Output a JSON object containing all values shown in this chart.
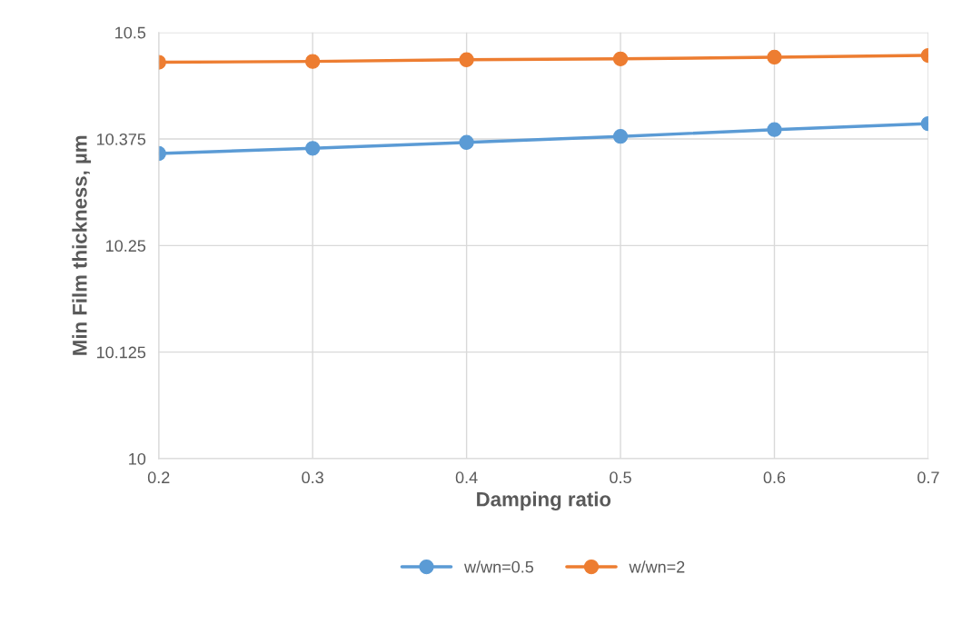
{
  "chart_data": {
    "type": "line",
    "xlabel": "Damping ratio",
    "ylabel": "Min Film thickness, µm",
    "x": [
      0.2,
      0.3,
      0.4,
      0.5,
      0.6,
      0.7
    ],
    "series": [
      {
        "name": "w/wn=0.5",
        "color": "#5b9bd5",
        "values": [
          10.358,
          10.364,
          10.371,
          10.378,
          10.386,
          10.393
        ]
      },
      {
        "name": "w/wn=2",
        "color": "#ed7d31",
        "values": [
          10.465,
          10.466,
          10.468,
          10.469,
          10.471,
          10.473
        ]
      }
    ],
    "xlim": [
      0.2,
      0.7
    ],
    "xticks": [
      0.2,
      0.3,
      0.4,
      0.5,
      0.6,
      0.7
    ],
    "ylim": [
      10,
      10.5
    ],
    "yticks": [
      10,
      10.125,
      10.25,
      10.375,
      10.5
    ],
    "grid": true,
    "legend": "bottom",
    "marker": "circle",
    "line_style": "solid"
  }
}
